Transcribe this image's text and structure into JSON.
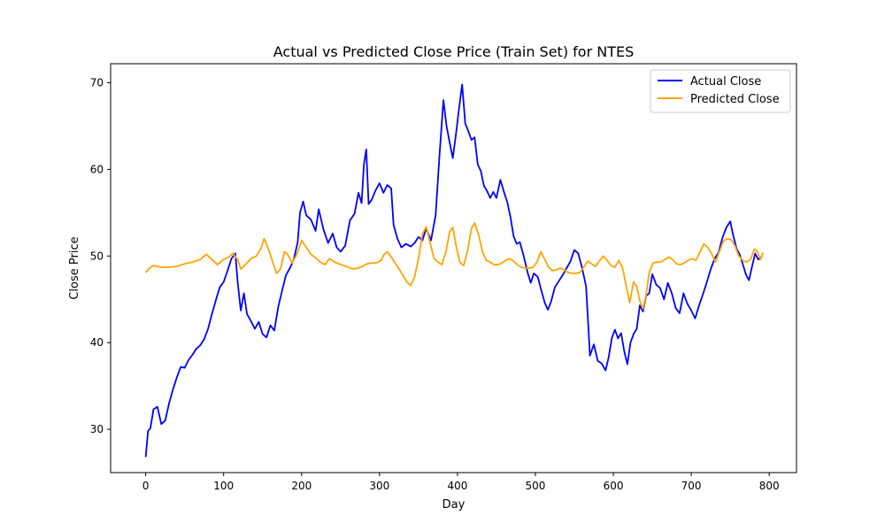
{
  "chart_data": {
    "type": "line",
    "title": "Actual vs Predicted Close Price (Train Set) for NTES",
    "xlabel": "Day",
    "ylabel": "Close Price",
    "xlim": [
      -45,
      835
    ],
    "ylim": [
      25,
      72.2
    ],
    "xticks": [
      0,
      100,
      200,
      300,
      400,
      500,
      600,
      700,
      800
    ],
    "yticks": [
      30,
      40,
      50,
      60,
      70
    ],
    "grid": false,
    "legend": "top-right",
    "series": [
      {
        "name": "Actual Close",
        "color": "#0000ff",
        "points": [
          [
            0,
            26.8
          ],
          [
            3,
            29.8
          ],
          [
            6,
            30.1
          ],
          [
            10,
            32.3
          ],
          [
            15,
            32.6
          ],
          [
            20,
            30.6
          ],
          [
            25,
            31.0
          ],
          [
            30,
            33.0
          ],
          [
            35,
            34.6
          ],
          [
            40,
            36.0
          ],
          [
            45,
            37.2
          ],
          [
            50,
            37.1
          ],
          [
            55,
            38.0
          ],
          [
            60,
            38.6
          ],
          [
            65,
            39.3
          ],
          [
            70,
            39.7
          ],
          [
            75,
            40.4
          ],
          [
            80,
            41.6
          ],
          [
            85,
            43.3
          ],
          [
            90,
            44.9
          ],
          [
            95,
            46.4
          ],
          [
            100,
            47.0
          ],
          [
            105,
            48.3
          ],
          [
            110,
            49.7
          ],
          [
            115,
            50.3
          ],
          [
            118,
            47.0
          ],
          [
            122,
            43.7
          ],
          [
            126,
            45.7
          ],
          [
            130,
            43.3
          ],
          [
            135,
            42.5
          ],
          [
            140,
            41.6
          ],
          [
            145,
            42.4
          ],
          [
            150,
            41.0
          ],
          [
            155,
            40.6
          ],
          [
            160,
            42.0
          ],
          [
            165,
            41.4
          ],
          [
            170,
            44.1
          ],
          [
            175,
            46.0
          ],
          [
            180,
            47.8
          ],
          [
            185,
            48.6
          ],
          [
            190,
            49.6
          ],
          [
            195,
            51.6
          ],
          [
            198,
            55.0
          ],
          [
            202,
            56.3
          ],
          [
            206,
            54.7
          ],
          [
            212,
            54.2
          ],
          [
            218,
            52.9
          ],
          [
            222,
            55.4
          ],
          [
            228,
            53.1
          ],
          [
            234,
            51.5
          ],
          [
            240,
            52.6
          ],
          [
            245,
            51.0
          ],
          [
            250,
            50.5
          ],
          [
            256,
            51.2
          ],
          [
            262,
            54.1
          ],
          [
            268,
            54.9
          ],
          [
            273,
            57.3
          ],
          [
            277,
            56.1
          ],
          [
            280,
            60.6
          ],
          [
            283,
            62.3
          ],
          [
            286,
            56.0
          ],
          [
            290,
            56.5
          ],
          [
            295,
            57.6
          ],
          [
            300,
            58.4
          ],
          [
            305,
            57.3
          ],
          [
            310,
            58.2
          ],
          [
            315,
            57.8
          ],
          [
            318,
            53.6
          ],
          [
            323,
            52.0
          ],
          [
            328,
            51.0
          ],
          [
            334,
            51.4
          ],
          [
            340,
            51.1
          ],
          [
            345,
            51.5
          ],
          [
            350,
            52.2
          ],
          [
            355,
            51.8
          ],
          [
            360,
            53.2
          ],
          [
            366,
            51.8
          ],
          [
            372,
            54.7
          ],
          [
            377,
            61.7
          ],
          [
            382,
            68.0
          ],
          [
            386,
            65.0
          ],
          [
            390,
            63.1
          ],
          [
            394,
            61.3
          ],
          [
            398,
            64.0
          ],
          [
            402,
            67.0
          ],
          [
            406,
            69.8
          ],
          [
            410,
            65.3
          ],
          [
            414,
            64.4
          ],
          [
            418,
            63.4
          ],
          [
            422,
            63.7
          ],
          [
            426,
            60.6
          ],
          [
            430,
            59.8
          ],
          [
            434,
            58.1
          ],
          [
            438,
            57.5
          ],
          [
            442,
            56.7
          ],
          [
            446,
            57.4
          ],
          [
            450,
            56.7
          ],
          [
            455,
            58.8
          ],
          [
            460,
            57.3
          ],
          [
            464,
            56.2
          ],
          [
            468,
            54.5
          ],
          [
            472,
            52.3
          ],
          [
            476,
            51.4
          ],
          [
            480,
            51.6
          ],
          [
            485,
            50.0
          ],
          [
            490,
            48.1
          ],
          [
            494,
            46.9
          ],
          [
            498,
            48.0
          ],
          [
            503,
            47.6
          ],
          [
            508,
            45.9
          ],
          [
            512,
            44.6
          ],
          [
            516,
            43.8
          ],
          [
            520,
            44.7
          ],
          [
            525,
            46.4
          ],
          [
            530,
            47.1
          ],
          [
            535,
            47.8
          ],
          [
            540,
            48.6
          ],
          [
            545,
            49.4
          ],
          [
            550,
            50.7
          ],
          [
            555,
            50.3
          ],
          [
            560,
            48.6
          ],
          [
            565,
            46.5
          ],
          [
            570,
            38.5
          ],
          [
            575,
            39.8
          ],
          [
            580,
            37.9
          ],
          [
            585,
            37.6
          ],
          [
            590,
            36.8
          ],
          [
            594,
            38.3
          ],
          [
            598,
            40.5
          ],
          [
            602,
            41.5
          ],
          [
            606,
            40.5
          ],
          [
            610,
            41.1
          ],
          [
            614,
            39.0
          ],
          [
            618,
            37.5
          ],
          [
            622,
            40.0
          ],
          [
            626,
            41.0
          ],
          [
            630,
            41.6
          ],
          [
            634,
            44.3
          ],
          [
            638,
            43.6
          ],
          [
            642,
            45.4
          ],
          [
            646,
            45.7
          ],
          [
            650,
            47.9
          ],
          [
            655,
            46.7
          ],
          [
            660,
            46.3
          ],
          [
            665,
            45.0
          ],
          [
            670,
            46.9
          ],
          [
            675,
            45.7
          ],
          [
            680,
            44.0
          ],
          [
            685,
            43.4
          ],
          [
            690,
            45.7
          ],
          [
            695,
            44.5
          ],
          [
            700,
            43.7
          ],
          [
            705,
            42.8
          ],
          [
            710,
            44.3
          ],
          [
            715,
            45.6
          ],
          [
            720,
            47.0
          ],
          [
            725,
            48.5
          ],
          [
            730,
            49.7
          ],
          [
            735,
            50.4
          ],
          [
            740,
            52.1
          ],
          [
            745,
            53.3
          ],
          [
            750,
            54.0
          ],
          [
            754,
            52.3
          ],
          [
            758,
            50.9
          ],
          [
            762,
            50.2
          ],
          [
            766,
            49.1
          ],
          [
            770,
            47.9
          ],
          [
            774,
            47.2
          ],
          [
            778,
            48.8
          ],
          [
            782,
            50.3
          ],
          [
            786,
            49.6
          ],
          [
            790,
            49.9
          ]
        ]
      },
      {
        "name": "Predicted Close",
        "color": "#ffa500",
        "points": [
          [
            0,
            48.1
          ],
          [
            5,
            48.6
          ],
          [
            10,
            48.9
          ],
          [
            20,
            48.7
          ],
          [
            30,
            48.7
          ],
          [
            40,
            48.8
          ],
          [
            50,
            49.1
          ],
          [
            60,
            49.3
          ],
          [
            70,
            49.6
          ],
          [
            78,
            50.2
          ],
          [
            85,
            49.6
          ],
          [
            92,
            49.0
          ],
          [
            100,
            49.6
          ],
          [
            107,
            49.9
          ],
          [
            112,
            50.3
          ],
          [
            118,
            49.6
          ],
          [
            122,
            48.5
          ],
          [
            128,
            49.0
          ],
          [
            135,
            49.7
          ],
          [
            142,
            50.0
          ],
          [
            148,
            50.9
          ],
          [
            152,
            52.0
          ],
          [
            158,
            50.7
          ],
          [
            163,
            49.3
          ],
          [
            168,
            48.0
          ],
          [
            173,
            48.5
          ],
          [
            178,
            50.5
          ],
          [
            182,
            50.2
          ],
          [
            188,
            49.2
          ],
          [
            194,
            50.2
          ],
          [
            200,
            51.8
          ],
          [
            206,
            51.0
          ],
          [
            212,
            50.2
          ],
          [
            218,
            49.8
          ],
          [
            224,
            49.3
          ],
          [
            230,
            49.0
          ],
          [
            236,
            49.7
          ],
          [
            242,
            49.3
          ],
          [
            248,
            49.1
          ],
          [
            254,
            48.9
          ],
          [
            260,
            48.7
          ],
          [
            266,
            48.5
          ],
          [
            272,
            48.6
          ],
          [
            278,
            48.8
          ],
          [
            284,
            49.1
          ],
          [
            290,
            49.2
          ],
          [
            296,
            49.2
          ],
          [
            302,
            49.5
          ],
          [
            306,
            50.2
          ],
          [
            310,
            50.5
          ],
          [
            315,
            49.9
          ],
          [
            320,
            49.2
          ],
          [
            325,
            48.5
          ],
          [
            330,
            47.8
          ],
          [
            335,
            47.0
          ],
          [
            340,
            46.6
          ],
          [
            345,
            47.6
          ],
          [
            350,
            49.7
          ],
          [
            355,
            52.5
          ],
          [
            360,
            53.4
          ],
          [
            365,
            51.5
          ],
          [
            370,
            49.7
          ],
          [
            375,
            49.3
          ],
          [
            380,
            49.0
          ],
          [
            385,
            50.4
          ],
          [
            390,
            52.8
          ],
          [
            394,
            53.3
          ],
          [
            398,
            51.3
          ],
          [
            403,
            49.3
          ],
          [
            408,
            48.9
          ],
          [
            413,
            50.6
          ],
          [
            418,
            53.2
          ],
          [
            422,
            53.8
          ],
          [
            427,
            52.5
          ],
          [
            432,
            50.5
          ],
          [
            437,
            49.5
          ],
          [
            442,
            49.3
          ],
          [
            447,
            49.0
          ],
          [
            452,
            49.0
          ],
          [
            457,
            49.2
          ],
          [
            462,
            49.5
          ],
          [
            467,
            49.7
          ],
          [
            472,
            49.4
          ],
          [
            477,
            49.0
          ],
          [
            482,
            48.7
          ],
          [
            487,
            48.6
          ],
          [
            492,
            48.6
          ],
          [
            497,
            48.7
          ],
          [
            502,
            49.3
          ],
          [
            507,
            50.5
          ],
          [
            512,
            49.6
          ],
          [
            517,
            48.7
          ],
          [
            522,
            48.3
          ],
          [
            527,
            48.4
          ],
          [
            532,
            48.6
          ],
          [
            537,
            48.4
          ],
          [
            542,
            48.1
          ],
          [
            547,
            48.0
          ],
          [
            552,
            48.0
          ],
          [
            557,
            48.1
          ],
          [
            562,
            48.7
          ],
          [
            567,
            49.4
          ],
          [
            572,
            49.1
          ],
          [
            577,
            48.8
          ],
          [
            582,
            49.4
          ],
          [
            587,
            50.0
          ],
          [
            592,
            49.5
          ],
          [
            597,
            48.9
          ],
          [
            602,
            48.7
          ],
          [
            607,
            49.5
          ],
          [
            612,
            48.6
          ],
          [
            617,
            46.3
          ],
          [
            621,
            44.6
          ],
          [
            626,
            47.0
          ],
          [
            630,
            46.5
          ],
          [
            634,
            44.8
          ],
          [
            638,
            43.9
          ],
          [
            642,
            45.5
          ],
          [
            646,
            48.1
          ],
          [
            651,
            49.2
          ],
          [
            656,
            49.3
          ],
          [
            661,
            49.3
          ],
          [
            666,
            49.6
          ],
          [
            671,
            49.9
          ],
          [
            676,
            49.6
          ],
          [
            681,
            49.1
          ],
          [
            686,
            49.0
          ],
          [
            691,
            49.2
          ],
          [
            696,
            49.5
          ],
          [
            701,
            49.7
          ],
          [
            706,
            49.5
          ],
          [
            711,
            50.4
          ],
          [
            716,
            51.4
          ],
          [
            721,
            51.0
          ],
          [
            726,
            50.3
          ],
          [
            731,
            49.3
          ],
          [
            736,
            50.5
          ],
          [
            741,
            51.7
          ],
          [
            746,
            52.0
          ],
          [
            751,
            51.9
          ],
          [
            756,
            51.2
          ],
          [
            761,
            50.0
          ],
          [
            766,
            49.5
          ],
          [
            771,
            49.3
          ],
          [
            776,
            49.6
          ],
          [
            781,
            50.8
          ],
          [
            785,
            50.5
          ],
          [
            789,
            49.6
          ],
          [
            792,
            50.4
          ]
        ]
      }
    ]
  }
}
